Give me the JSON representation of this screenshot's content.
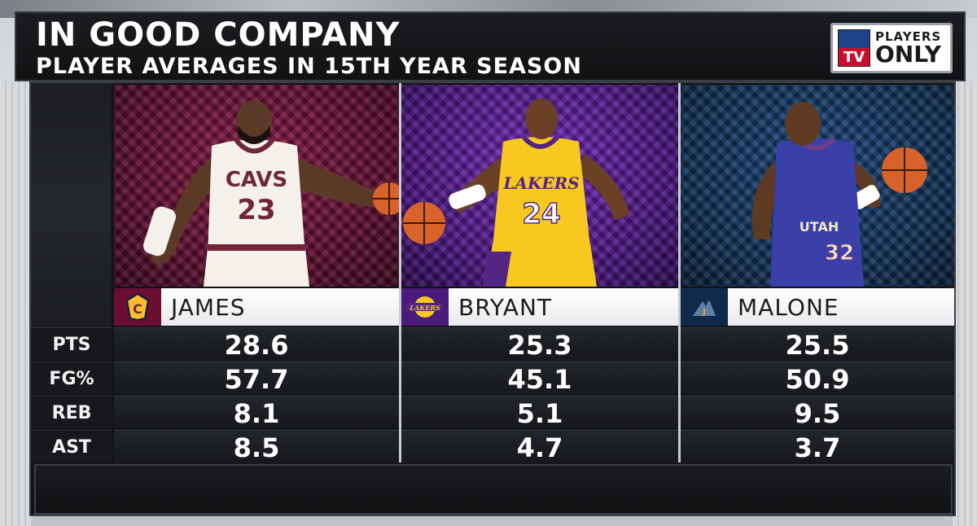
{
  "header": {
    "title": "IN GOOD COMPANY",
    "subtitle": "PLAYER AVERAGES IN 15TH YEAR SEASON"
  },
  "logo": {
    "network_mark": "TV",
    "line1": "PLAYERS",
    "line2": "ONLY"
  },
  "stat_labels": [
    "PTS",
    "FG%",
    "REB",
    "AST"
  ],
  "players": [
    {
      "name": "JAMES",
      "team_icon": "cavaliers-logo-icon",
      "jersey_text": "CAVS",
      "jersey_number": "23",
      "colors": {
        "jersey": "#f4f1ea",
        "accent": "#6f263d"
      },
      "stats": [
        "28.6",
        "57.7",
        "8.1",
        "8.5"
      ]
    },
    {
      "name": "BRYANT",
      "team_icon": "lakers-logo-icon",
      "jersey_text": "LAKERS",
      "jersey_number": "24",
      "colors": {
        "jersey": "#f7c820",
        "accent": "#552583"
      },
      "stats": [
        "25.3",
        "45.1",
        "5.1",
        "4.7"
      ]
    },
    {
      "name": "MALONE",
      "team_icon": "jazz-logo-icon",
      "jersey_text": "UTAH",
      "jersey_number": "32",
      "colors": {
        "jersey": "#3b3fa8",
        "accent": "#6d3f8a"
      },
      "stats": [
        "25.5",
        "50.9",
        "9.5",
        "3.7"
      ]
    }
  ]
}
